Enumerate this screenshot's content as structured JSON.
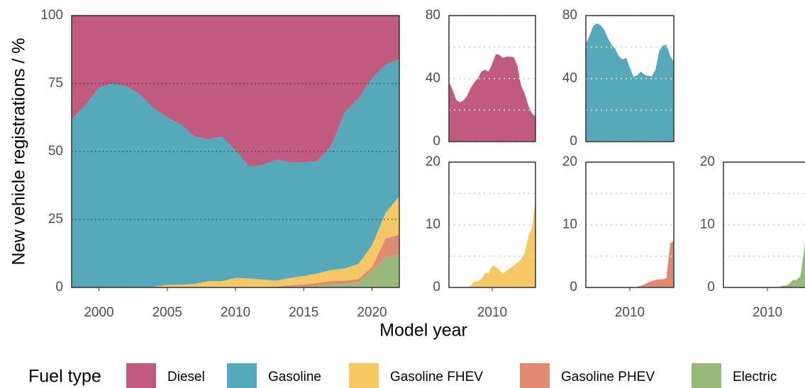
{
  "chart_data": [
    {
      "type": "stacked_area",
      "x": [
        1998,
        1999,
        2000,
        2001,
        2002,
        2003,
        2004,
        2005,
        2006,
        2007,
        2008,
        2009,
        2010,
        2011,
        2012,
        2013,
        2014,
        2015,
        2016,
        2017,
        2018,
        2019,
        2020,
        2021,
        2022
      ],
      "series": [
        {
          "name": "Diesel",
          "color": "#c05a7e",
          "values": [
            38,
            33,
            26.5,
            25,
            26,
            29,
            34,
            37.5,
            40,
            44.5,
            45.5,
            44.5,
            49.5,
            55.5,
            55,
            53,
            54,
            54,
            53.5,
            48,
            35.5,
            30.5,
            23,
            18,
            16
          ]
        },
        {
          "name": "Gasoline",
          "color": "#56a9b9",
          "values": [
            62,
            67,
            73.5,
            75,
            74,
            71,
            65.7,
            61.6,
            59,
            54.2,
            52.2,
            53.2,
            47,
            41.2,
            42.1,
            44.5,
            42.5,
            41.8,
            41.4,
            45.6,
            57.5,
            60.9,
            61.5,
            54.5,
            50.5
          ]
        },
        {
          "name": "Gasoline FHEV",
          "color": "#f5c765",
          "values": [
            0,
            0,
            0,
            0,
            0,
            0,
            0.3,
            0.9,
            1,
            1.3,
            2.3,
            2.3,
            3.5,
            3.3,
            2.8,
            2.2,
            2.7,
            3.1,
            3.5,
            4,
            4.5,
            5.5,
            8,
            9.5,
            14
          ]
        },
        {
          "name": "Gasoline PHEV",
          "color": "#e08a72",
          "values": [
            0,
            0,
            0,
            0,
            0,
            0,
            0,
            0,
            0,
            0,
            0,
            0,
            0,
            0,
            0.1,
            0.3,
            0.5,
            0.8,
            1,
            1.2,
            1.3,
            1.3,
            1.5,
            7,
            7.5
          ]
        },
        {
          "name": "Electric",
          "color": "#97b97a",
          "values": [
            0,
            0,
            0,
            0,
            0,
            0,
            0,
            0,
            0,
            0,
            0,
            0,
            0,
            0,
            0,
            0,
            0.3,
            0.3,
            0.6,
            1.2,
            1.2,
            1.8,
            6,
            11,
            12
          ]
        }
      ],
      "xlim": [
        1998,
        2022
      ],
      "xticks": [
        2000,
        2005,
        2010,
        2015,
        2020
      ],
      "ylim": [
        0,
        100
      ],
      "yticks": [
        0,
        25,
        50,
        75,
        100
      ],
      "grid": true,
      "x_label": "Model year",
      "y_label": "New vehicle registrations / %",
      "legend_title": "Fuel type",
      "legend": "bottom"
    },
    {
      "type": "area",
      "x": [
        1998,
        1999,
        2000,
        2001,
        2002,
        2003,
        2004,
        2005,
        2006,
        2007,
        2008,
        2009,
        2010,
        2011,
        2012,
        2013,
        2014,
        2015,
        2016,
        2017,
        2018,
        2019,
        2020,
        2021,
        2022
      ],
      "color": "#c05a7e",
      "values": [
        38,
        33,
        26.5,
        25,
        26,
        29,
        34,
        37.5,
        40,
        44.5,
        45.5,
        44.5,
        49.5,
        55.5,
        55,
        53,
        54,
        54,
        53.5,
        48,
        35.5,
        30.5,
        23,
        18,
        16
      ],
      "xlim": [
        1998,
        2022
      ],
      "ylim": [
        0,
        80
      ],
      "yticks": [
        0,
        40,
        80
      ],
      "minor_yticks": [
        20,
        60
      ]
    },
    {
      "type": "area",
      "x": [
        1998,
        1999,
        2000,
        2001,
        2002,
        2003,
        2004,
        2005,
        2006,
        2007,
        2008,
        2009,
        2010,
        2011,
        2012,
        2013,
        2014,
        2015,
        2016,
        2017,
        2018,
        2019,
        2020,
        2021,
        2022
      ],
      "color": "#56a9b9",
      "values": [
        62,
        67,
        73.5,
        75,
        74,
        71,
        65.7,
        61.6,
        59,
        54.2,
        52.2,
        53.2,
        47,
        41.2,
        42.1,
        44.5,
        42.5,
        41.8,
        41.4,
        45.6,
        57.5,
        60.9,
        61.5,
        54.5,
        50.5
      ],
      "xlim": [
        1998,
        2022
      ],
      "ylim": [
        0,
        80
      ],
      "yticks": [
        0,
        40,
        80
      ],
      "minor_yticks": [
        20,
        60
      ]
    },
    {
      "type": "area",
      "x": [
        1998,
        1999,
        2000,
        2001,
        2002,
        2003,
        2004,
        2005,
        2006,
        2007,
        2008,
        2009,
        2010,
        2011,
        2012,
        2013,
        2014,
        2015,
        2016,
        2017,
        2018,
        2019,
        2020,
        2021,
        2022
      ],
      "color": "#f5c765",
      "values": [
        0,
        0,
        0,
        0,
        0,
        0,
        0.3,
        0.9,
        1,
        1.3,
        2.3,
        2.3,
        3.5,
        3.3,
        2.8,
        2.2,
        2.7,
        3.1,
        3.5,
        4,
        4.5,
        5.5,
        8,
        9.5,
        14
      ],
      "xlim": [
        1998,
        2022
      ],
      "xticks": [
        2010
      ],
      "ylim": [
        0,
        20
      ],
      "yticks": [
        0,
        10,
        20
      ],
      "minor_yticks": [
        5,
        15
      ]
    },
    {
      "type": "area",
      "x": [
        1998,
        1999,
        2000,
        2001,
        2002,
        2003,
        2004,
        2005,
        2006,
        2007,
        2008,
        2009,
        2010,
        2011,
        2012,
        2013,
        2014,
        2015,
        2016,
        2017,
        2018,
        2019,
        2020,
        2021,
        2022
      ],
      "color": "#e08a72",
      "values": [
        0,
        0,
        0,
        0,
        0,
        0,
        0,
        0,
        0,
        0,
        0,
        0,
        0,
        0,
        0.1,
        0.3,
        0.5,
        0.8,
        1,
        1.2,
        1.3,
        1.3,
        1.5,
        7,
        7.5
      ],
      "xlim": [
        1998,
        2022
      ],
      "xticks": [
        2010
      ],
      "ylim": [
        0,
        20
      ],
      "yticks": [
        0,
        10,
        20
      ],
      "minor_yticks": [
        5,
        15
      ]
    },
    {
      "type": "area",
      "x": [
        1998,
        1999,
        2000,
        2001,
        2002,
        2003,
        2004,
        2005,
        2006,
        2007,
        2008,
        2009,
        2010,
        2011,
        2012,
        2013,
        2014,
        2015,
        2016,
        2017,
        2018,
        2019,
        2020,
        2021,
        2022
      ],
      "color": "#97b97a",
      "values": [
        0,
        0,
        0,
        0,
        0,
        0,
        0,
        0,
        0,
        0,
        0,
        0,
        0,
        0,
        0,
        0,
        0.3,
        0.3,
        0.6,
        1.2,
        1.2,
        1.8,
        6,
        11,
        12
      ],
      "xlim": [
        1998,
        2022
      ],
      "xticks": [
        2010
      ],
      "ylim": [
        0,
        20
      ],
      "yticks": [
        0,
        10,
        20
      ],
      "minor_yticks": [
        5,
        15
      ]
    }
  ]
}
